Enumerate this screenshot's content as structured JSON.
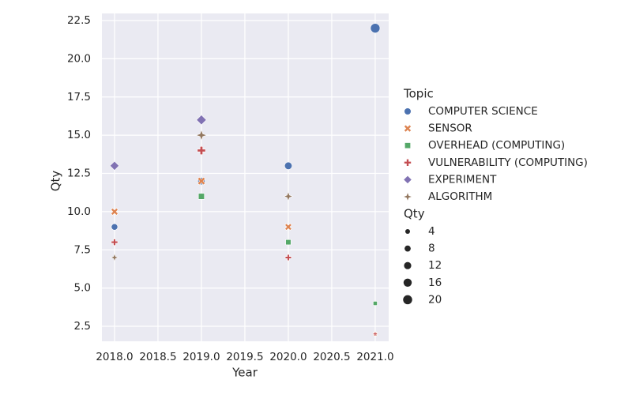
{
  "chart_data": {
    "type": "scatter",
    "x_label": "Year",
    "y_label": "Qty",
    "xlim": [
      2017.855,
      2021.155
    ],
    "xticks": [
      {
        "value": 2018,
        "label": "2018.0"
      },
      {
        "value": 2018.5,
        "label": "2018.5"
      },
      {
        "value": 2019,
        "label": "2019.0"
      },
      {
        "value": 2019.5,
        "label": "2019.5"
      },
      {
        "value": 2020,
        "label": "2020.0"
      },
      {
        "value": 2020.5,
        "label": "2020.5"
      },
      {
        "value": 2021,
        "label": "2021.0"
      }
    ],
    "ylim": [
      1.52,
      22.965
    ],
    "yticks": [
      2.5,
      {
        "value": 5,
        "label": "5.0"
      },
      7.5,
      {
        "value": 10,
        "label": "10.0"
      },
      12.5,
      {
        "value": 15,
        "label": "15.0"
      },
      17.5,
      {
        "value": 20,
        "label": "20.0"
      },
      22.5
    ],
    "grid": true,
    "hue_title": "Topic",
    "size_title": "Qty",
    "size_legend": [
      4,
      8,
      12,
      16,
      20
    ],
    "series": [
      {
        "name": "COMPUTER SCIENCE",
        "color": "#4c72b0",
        "marker": "circle",
        "x": [
          2018,
          2019,
          2020,
          2021
        ],
        "values": [
          9,
          12,
          13,
          22
        ]
      },
      {
        "name": "SENSOR",
        "color": "#dd8452",
        "marker": "x",
        "x": [
          2018,
          2019,
          2020,
          2021
        ],
        "values": [
          10,
          12,
          9,
          2
        ]
      },
      {
        "name": "OVERHEAD (COMPUTING)",
        "color": "#55a868",
        "marker": "square",
        "x": [
          2019,
          2020,
          2021
        ],
        "values": [
          11,
          8,
          4
        ]
      },
      {
        "name": "VULNERABILITY (COMPUTING)",
        "color": "#c44e52",
        "marker": "plus",
        "x": [
          2018,
          2019,
          2020,
          2021
        ],
        "values": [
          8,
          14,
          7,
          2
        ]
      },
      {
        "name": "EXPERIMENT",
        "color": "#8172b3",
        "marker": "diamond",
        "x": [
          2018,
          2019
        ],
        "values": [
          13,
          16
        ]
      },
      {
        "name": "ALGORITHM",
        "color": "#937860",
        "marker": "star",
        "x": [
          2018,
          2019,
          2020
        ],
        "values": [
          7,
          15,
          11
        ]
      }
    ]
  }
}
